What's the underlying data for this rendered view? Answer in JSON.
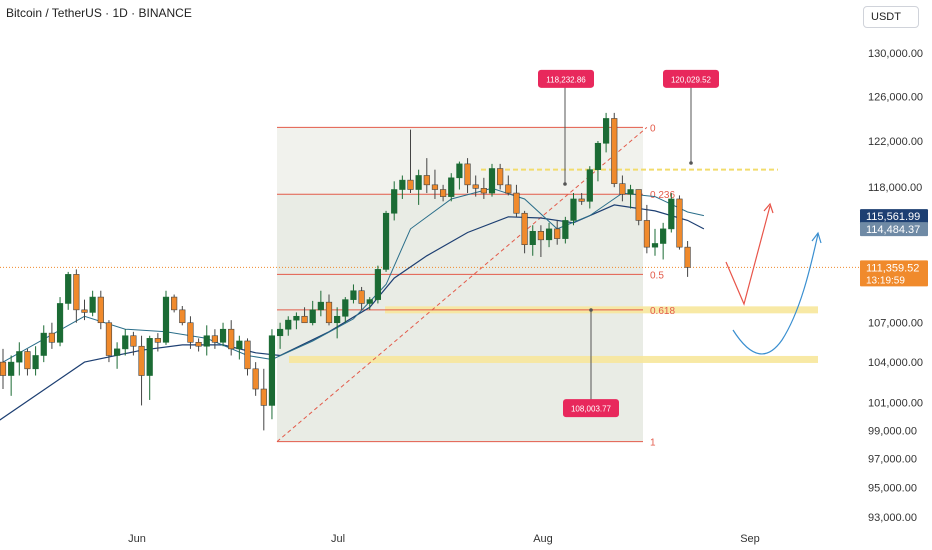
{
  "header": {
    "title": "Bitcoin / TetherUS · 1D · BINANCE"
  },
  "currency_button": {
    "label": "USDT"
  },
  "colors": {
    "up": "#1b6b34",
    "down": "#f08a2c",
    "ma_fast": "#2a6e8a",
    "ma_slow": "#1d3f72",
    "fib_line": "#e35b4a",
    "fib_zone": "#eef0ea",
    "support": "#f7e79b",
    "callout": "#e8285c",
    "price_badge_blue": "#1d3f72",
    "price_badge_grey": "#6f8aa5",
    "price_badge_orange": "#f08a2c",
    "bear_arrow": "#e8554a",
    "bull_arrow": "#3a8fd0"
  },
  "chart_data": {
    "type": "candlestick",
    "x_labels": [
      "Jun",
      "Jul",
      "Aug",
      "Sep"
    ],
    "y_ticks": [
      "130,000.00",
      "126,000.00",
      "122,000.00",
      "118,000.00",
      "107,000.00",
      "104,000.00",
      "101,000.00",
      "99,000.00",
      "97,000.00",
      "95,000.00",
      "93,000.00"
    ],
    "ylim": [
      92000,
      132000
    ],
    "y_scale": "log",
    "candles": [
      [
        104000,
        105000,
        102000,
        103000
      ],
      [
        103000,
        104500,
        101500,
        104000
      ],
      [
        104000,
        105500,
        103000,
        104800
      ],
      [
        104800,
        105000,
        103000,
        103500
      ],
      [
        103500,
        105200,
        103000,
        104500
      ],
      [
        104500,
        106800,
        104000,
        106200
      ],
      [
        106200,
        107000,
        105000,
        105500
      ],
      [
        105500,
        109000,
        105200,
        108500
      ],
      [
        108500,
        111000,
        108000,
        110800
      ],
      [
        110800,
        111200,
        107000,
        108000
      ],
      [
        108000,
        108800,
        107200,
        107800
      ],
      [
        107800,
        109500,
        107500,
        109000
      ],
      [
        109000,
        109500,
        106500,
        107000
      ],
      [
        107000,
        107200,
        104000,
        104500
      ],
      [
        104500,
        105500,
        103500,
        105000
      ],
      [
        105000,
        106500,
        104500,
        106000
      ],
      [
        106000,
        106300,
        104500,
        105200
      ],
      [
        105200,
        106000,
        100800,
        103000
      ],
      [
        103000,
        106000,
        101200,
        105800
      ],
      [
        105800,
        106200,
        104800,
        105500
      ],
      [
        105500,
        109500,
        105300,
        109000
      ],
      [
        109000,
        109200,
        107800,
        108000
      ],
      [
        108000,
        108300,
        106800,
        107000
      ],
      [
        107000,
        107500,
        105000,
        105500
      ],
      [
        105500,
        105800,
        104800,
        105200
      ],
      [
        105200,
        106800,
        104500,
        106000
      ],
      [
        106000,
        106500,
        105000,
        105500
      ],
      [
        105500,
        107000,
        105200,
        106500
      ],
      [
        106500,
        107200,
        104500,
        105000
      ],
      [
        105000,
        106000,
        104200,
        105600
      ],
      [
        105600,
        105800,
        103000,
        103500
      ],
      [
        103500,
        104000,
        101500,
        102000
      ],
      [
        102000,
        103500,
        99000,
        100800
      ],
      [
        100800,
        106500,
        99800,
        106000
      ],
      [
        106000,
        107000,
        105000,
        106500
      ],
      [
        106500,
        107500,
        106000,
        107200
      ],
      [
        107200,
        107800,
        106500,
        107500
      ],
      [
        107500,
        108200,
        107000,
        107000
      ],
      [
        107000,
        108700,
        106800,
        108000
      ],
      [
        108000,
        109500,
        107500,
        108600
      ],
      [
        108600,
        109200,
        106800,
        107000
      ],
      [
        107000,
        108200,
        105800,
        107500
      ],
      [
        107500,
        109000,
        107000,
        108800
      ],
      [
        108800,
        110000,
        108500,
        109500
      ],
      [
        109500,
        109800,
        108000,
        108500
      ],
      [
        108500,
        109000,
        108000,
        108800
      ],
      [
        108800,
        111500,
        108500,
        111200
      ],
      [
        111200,
        116000,
        111000,
        115800
      ],
      [
        115800,
        118500,
        115200,
        117800
      ],
      [
        117800,
        119000,
        117000,
        118600
      ],
      [
        118600,
        123000,
        117500,
        117800
      ],
      [
        117800,
        119500,
        116500,
        119000
      ],
      [
        119000,
        120500,
        117500,
        118200
      ],
      [
        118200,
        119500,
        117000,
        117800
      ],
      [
        117800,
        118200,
        116800,
        117200
      ],
      [
        117200,
        119200,
        116800,
        118800
      ],
      [
        118800,
        120200,
        117800,
        120000
      ],
      [
        120000,
        120500,
        117500,
        118200
      ],
      [
        118200,
        119000,
        117200,
        117900
      ],
      [
        117900,
        118800,
        117000,
        117500
      ],
      [
        117500,
        120000,
        117200,
        119600
      ],
      [
        119600,
        120000,
        117800,
        118200
      ],
      [
        118200,
        119000,
        117300,
        117500
      ],
      [
        117500,
        118200,
        115500,
        115800
      ],
      [
        115800,
        116000,
        112500,
        113200
      ],
      [
        113200,
        114800,
        112300,
        114300
      ],
      [
        114300,
        114800,
        112200,
        113600
      ],
      [
        113600,
        115000,
        113000,
        114500
      ],
      [
        114500,
        115200,
        113200,
        113700
      ],
      [
        113700,
        115500,
        113300,
        115200
      ],
      [
        115200,
        117500,
        114800,
        117000
      ],
      [
        117000,
        117500,
        116500,
        116800
      ],
      [
        116800,
        119800,
        116200,
        119500
      ],
      [
        119500,
        122000,
        118500,
        121800
      ],
      [
        121800,
        124500,
        121000,
        124000
      ],
      [
        124000,
        124500,
        118000,
        118300
      ],
      [
        118300,
        119000,
        116800,
        117400
      ],
      [
        117400,
        118200,
        116200,
        117800
      ],
      [
        117800,
        117800,
        114800,
        115200
      ],
      [
        115200,
        116500,
        112500,
        113000
      ],
      [
        113000,
        114500,
        112300,
        113300
      ],
      [
        113300,
        115000,
        112000,
        114500
      ],
      [
        114500,
        117500,
        114200,
        117000
      ],
      [
        117000,
        117300,
        112800,
        113000
      ],
      [
        113000,
        113500,
        110600,
        111360
      ]
    ],
    "ma_fast": [
      [
        0,
        104000
      ],
      [
        10,
        107500
      ],
      [
        15,
        106500
      ],
      [
        20,
        106300
      ],
      [
        25,
        105800
      ],
      [
        30,
        104500
      ],
      [
        33,
        104200
      ],
      [
        38,
        105600
      ],
      [
        43,
        107300
      ],
      [
        47,
        110000
      ],
      [
        50,
        114500
      ],
      [
        55,
        117000
      ],
      [
        60,
        117900
      ],
      [
        64,
        117000
      ],
      [
        68,
        114500
      ],
      [
        72,
        115600
      ],
      [
        76,
        117500
      ],
      [
        80,
        117200
      ],
      [
        84,
        115900
      ],
      [
        86,
        115600
      ]
    ],
    "ma_slow": [
      [
        -1,
        99500
      ],
      [
        10,
        104000
      ],
      [
        17,
        104900
      ],
      [
        22,
        105300
      ],
      [
        27,
        105300
      ],
      [
        31,
        104700
      ],
      [
        34,
        104500
      ],
      [
        40,
        106300
      ],
      [
        45,
        108200
      ],
      [
        48,
        110500
      ],
      [
        52,
        112300
      ],
      [
        57,
        114200
      ],
      [
        62,
        115500
      ],
      [
        66,
        115400
      ],
      [
        70,
        115000
      ],
      [
        75,
        116500
      ],
      [
        80,
        116000
      ],
      [
        84,
        115200
      ],
      [
        86,
        114500
      ]
    ],
    "fibonacci": {
      "high": 123200,
      "low": 98200,
      "levels": [
        {
          "label": "0",
          "value": 123200
        },
        {
          "label": "0.236",
          "value": 117400
        },
        {
          "label": "0.5",
          "value": 110800
        },
        {
          "label": "0.618",
          "value": 108000
        },
        {
          "label": "1",
          "value": 98200
        }
      ]
    },
    "support_zones": [
      {
        "value": 119500
      },
      {
        "value": 108000
      },
      {
        "value": 104200
      }
    ],
    "callouts": [
      {
        "text": "118,232.86"
      },
      {
        "text": "120,029.52"
      },
      {
        "text": "108,003.77"
      }
    ],
    "price_badges": [
      {
        "text": "115,561.99",
        "sub": ""
      },
      {
        "text": "114,484.37",
        "sub": ""
      },
      {
        "text": "111,359.52",
        "sub": "13:19:59"
      }
    ],
    "current_price": 111360
  }
}
